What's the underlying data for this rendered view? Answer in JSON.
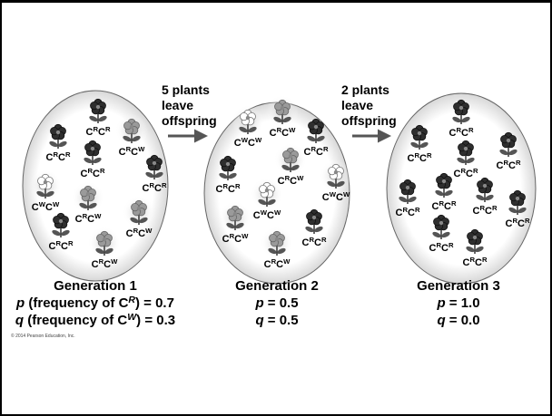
{
  "arrows": [
    {
      "lines": [
        "5 plants",
        "leave",
        "offspring"
      ]
    },
    {
      "lines": [
        "2 plants",
        "leave",
        "offspring"
      ]
    }
  ],
  "generations": [
    {
      "plants": [
        {
          "label": [
            {
              "text": "C"
            },
            {
              "text": "R",
              "style": "sup"
            },
            {
              "text": "C"
            },
            {
              "text": "R",
              "style": "sup"
            }
          ]
        },
        {
          "label": [
            {
              "text": "C"
            },
            {
              "text": "R",
              "style": "sup"
            },
            {
              "text": "C"
            },
            {
              "text": "R",
              "style": "sup"
            }
          ]
        },
        {
          "label": [
            {
              "text": "C"
            },
            {
              "text": "R",
              "style": "sup"
            },
            {
              "text": "C"
            },
            {
              "text": "W",
              "style": "sup"
            }
          ]
        },
        {
          "label": [
            {
              "text": "C"
            },
            {
              "text": "R",
              "style": "sup"
            },
            {
              "text": "C"
            },
            {
              "text": "R",
              "style": "sup"
            }
          ]
        },
        {
          "label": [
            {
              "text": "C"
            },
            {
              "text": "R",
              "style": "sup"
            },
            {
              "text": "C"
            },
            {
              "text": "R",
              "style": "sup"
            }
          ]
        },
        {
          "label": [
            {
              "text": "C"
            },
            {
              "text": "W",
              "style": "sup"
            },
            {
              "text": "C"
            },
            {
              "text": "W",
              "style": "sup"
            }
          ]
        },
        {
          "label": [
            {
              "text": "C"
            },
            {
              "text": "R",
              "style": "sup"
            },
            {
              "text": "C"
            },
            {
              "text": "W",
              "style": "sup"
            }
          ]
        },
        {
          "label": [
            {
              "text": "C"
            },
            {
              "text": "R",
              "style": "sup"
            },
            {
              "text": "C"
            },
            {
              "text": "W",
              "style": "sup"
            }
          ]
        },
        {
          "label": [
            {
              "text": "C"
            },
            {
              "text": "R",
              "style": "sup"
            },
            {
              "text": "C"
            },
            {
              "text": "R",
              "style": "sup"
            }
          ]
        },
        {
          "label": [
            {
              "text": "C"
            },
            {
              "text": "R",
              "style": "sup"
            },
            {
              "text": "C"
            },
            {
              "text": "W",
              "style": "sup"
            }
          ]
        }
      ],
      "caption": [
        [
          {
            "text": "Generation 1"
          }
        ],
        [
          {
            "text": "p",
            "style": "italic"
          },
          {
            "text": " (frequency of "
          },
          {
            "text": "C"
          },
          {
            "text": "R",
            "style": "supitalic"
          },
          {
            "text": ") = 0.7"
          }
        ],
        [
          {
            "text": "q",
            "style": "italic"
          },
          {
            "text": " (frequency of "
          },
          {
            "text": "C"
          },
          {
            "text": "W",
            "style": "supitalic"
          },
          {
            "text": ") = 0.3"
          }
        ]
      ]
    },
    {
      "plants": [
        {
          "label": [
            {
              "text": "C"
            },
            {
              "text": "W",
              "style": "sup"
            },
            {
              "text": "C"
            },
            {
              "text": "W",
              "style": "sup"
            }
          ]
        },
        {
          "label": [
            {
              "text": "C"
            },
            {
              "text": "R",
              "style": "sup"
            },
            {
              "text": "C"
            },
            {
              "text": "W",
              "style": "sup"
            }
          ]
        },
        {
          "label": [
            {
              "text": "C"
            },
            {
              "text": "R",
              "style": "sup"
            },
            {
              "text": "C"
            },
            {
              "text": "R",
              "style": "sup"
            }
          ]
        },
        {
          "label": [
            {
              "text": "C"
            },
            {
              "text": "R",
              "style": "sup"
            },
            {
              "text": "C"
            },
            {
              "text": "R",
              "style": "sup"
            }
          ]
        },
        {
          "label": [
            {
              "text": "C"
            },
            {
              "text": "R",
              "style": "sup"
            },
            {
              "text": "C"
            },
            {
              "text": "W",
              "style": "sup"
            }
          ]
        },
        {
          "label": [
            {
              "text": "C"
            },
            {
              "text": "W",
              "style": "sup"
            },
            {
              "text": "C"
            },
            {
              "text": "W",
              "style": "sup"
            }
          ]
        },
        {
          "label": [
            {
              "text": "C"
            },
            {
              "text": "W",
              "style": "sup"
            },
            {
              "text": "C"
            },
            {
              "text": "W",
              "style": "sup"
            }
          ]
        },
        {
          "label": [
            {
              "text": "C"
            },
            {
              "text": "R",
              "style": "sup"
            },
            {
              "text": "C"
            },
            {
              "text": "W",
              "style": "sup"
            }
          ]
        },
        {
          "label": [
            {
              "text": "C"
            },
            {
              "text": "R",
              "style": "sup"
            },
            {
              "text": "C"
            },
            {
              "text": "W",
              "style": "sup"
            }
          ]
        },
        {
          "label": [
            {
              "text": "C"
            },
            {
              "text": "R",
              "style": "sup"
            },
            {
              "text": "C"
            },
            {
              "text": "R",
              "style": "sup"
            }
          ]
        }
      ],
      "caption": [
        [
          {
            "text": "Generation 2"
          }
        ],
        [
          {
            "text": "p",
            "style": "italic"
          },
          {
            "text": " = 0.5"
          }
        ],
        [
          {
            "text": "q",
            "style": "italic"
          },
          {
            "text": " = 0.5"
          }
        ]
      ]
    },
    {
      "plants": [
        {
          "label": [
            {
              "text": "C"
            },
            {
              "text": "R",
              "style": "sup"
            },
            {
              "text": "C"
            },
            {
              "text": "R",
              "style": "sup"
            }
          ]
        },
        {
          "label": [
            {
              "text": "C"
            },
            {
              "text": "R",
              "style": "sup"
            },
            {
              "text": "C"
            },
            {
              "text": "R",
              "style": "sup"
            }
          ]
        },
        {
          "label": [
            {
              "text": "C"
            },
            {
              "text": "R",
              "style": "sup"
            },
            {
              "text": "C"
            },
            {
              "text": "R",
              "style": "sup"
            }
          ]
        },
        {
          "label": [
            {
              "text": "C"
            },
            {
              "text": "R",
              "style": "sup"
            },
            {
              "text": "C"
            },
            {
              "text": "R",
              "style": "sup"
            }
          ]
        },
        {
          "label": [
            {
              "text": "C"
            },
            {
              "text": "R",
              "style": "sup"
            },
            {
              "text": "C"
            },
            {
              "text": "R",
              "style": "sup"
            }
          ]
        },
        {
          "label": [
            {
              "text": "C"
            },
            {
              "text": "R",
              "style": "sup"
            },
            {
              "text": "C"
            },
            {
              "text": "R",
              "style": "sup"
            }
          ]
        },
        {
          "label": [
            {
              "text": "C"
            },
            {
              "text": "R",
              "style": "sup"
            },
            {
              "text": "C"
            },
            {
              "text": "R",
              "style": "sup"
            }
          ]
        },
        {
          "label": [
            {
              "text": "C"
            },
            {
              "text": "R",
              "style": "sup"
            },
            {
              "text": "C"
            },
            {
              "text": "R",
              "style": "sup"
            }
          ]
        },
        {
          "label": [
            {
              "text": "C"
            },
            {
              "text": "R",
              "style": "sup"
            },
            {
              "text": "C"
            },
            {
              "text": "R",
              "style": "sup"
            }
          ]
        },
        {
          "label": [
            {
              "text": "C"
            },
            {
              "text": "R",
              "style": "sup"
            },
            {
              "text": "C"
            },
            {
              "text": "R",
              "style": "sup"
            }
          ]
        }
      ],
      "caption": [
        [
          {
            "text": "Generation 3"
          }
        ],
        [
          {
            "text": "p",
            "style": "italic"
          },
          {
            "text": " = 1.0"
          }
        ],
        [
          {
            "text": "q",
            "style": "italic"
          },
          {
            "text": " = 0.0"
          }
        ]
      ]
    }
  ],
  "copyright": "© 2014 Pearson Education, Inc."
}
